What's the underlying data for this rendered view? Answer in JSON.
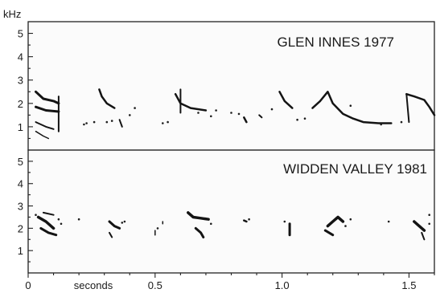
{
  "chart_data": {
    "type": "spectrogram",
    "y_unit_label": "kHz",
    "x_unit_label": "seconds",
    "xlim": [
      0,
      1.6
    ],
    "ylim": [
      0,
      5.5
    ],
    "x_ticks": [
      {
        "value": 0,
        "label": "0"
      },
      {
        "value": 0.5,
        "label": "0.5"
      },
      {
        "value": 1.0,
        "label": "1.0"
      },
      {
        "value": 1.5,
        "label": "1.5"
      }
    ],
    "y_ticks": [
      {
        "value": 1,
        "label": "1"
      },
      {
        "value": 2,
        "label": "2"
      },
      {
        "value": 3,
        "label": "3"
      },
      {
        "value": 4,
        "label": "4"
      },
      {
        "value": 5,
        "label": "5"
      }
    ],
    "panels": [
      {
        "title": "GLEN INNES 1977",
        "traces": [
          {
            "w": 3,
            "points": [
              [
                0.03,
                2.5
              ],
              [
                0.06,
                2.2
              ],
              [
                0.1,
                2.1
              ],
              [
                0.12,
                2.0
              ]
            ]
          },
          {
            "w": 3,
            "points": [
              [
                0.03,
                1.85
              ],
              [
                0.07,
                1.7
              ],
              [
                0.12,
                1.65
              ]
            ]
          },
          {
            "w": 2,
            "points": [
              [
                0.03,
                1.2
              ],
              [
                0.07,
                1.0
              ],
              [
                0.1,
                0.9
              ]
            ]
          },
          {
            "w": 1.5,
            "points": [
              [
                0.03,
                0.8
              ],
              [
                0.06,
                0.6
              ],
              [
                0.08,
                0.5
              ]
            ]
          },
          {
            "w": 2,
            "points": [
              [
                0.12,
                2.3
              ],
              [
                0.12,
                0.8
              ]
            ]
          },
          {
            "w": 2.5,
            "points": [
              [
                0.28,
                2.6
              ],
              [
                0.29,
                2.3
              ],
              [
                0.31,
                2.0
              ],
              [
                0.34,
                1.8
              ]
            ]
          },
          {
            "w": 2,
            "points": [
              [
                0.36,
                1.3
              ],
              [
                0.37,
                1.0
              ]
            ]
          },
          {
            "w": 2.5,
            "points": [
              [
                0.58,
                2.4
              ],
              [
                0.6,
                2.0
              ],
              [
                0.64,
                1.8
              ],
              [
                0.7,
                1.7
              ]
            ]
          },
          {
            "w": 2,
            "points": [
              [
                0.6,
                2.6
              ],
              [
                0.6,
                1.6
              ]
            ]
          },
          {
            "w": 2.5,
            "points": [
              [
                0.85,
                1.4
              ],
              [
                0.86,
                1.2
              ]
            ]
          },
          {
            "w": 2,
            "points": [
              [
                0.91,
                1.5
              ],
              [
                0.92,
                1.4
              ]
            ]
          },
          {
            "w": 2.5,
            "points": [
              [
                0.99,
                2.5
              ],
              [
                1.01,
                2.1
              ],
              [
                1.04,
                1.8
              ]
            ]
          },
          {
            "w": 2.5,
            "points": [
              [
                1.12,
                1.8
              ],
              [
                1.15,
                2.1
              ],
              [
                1.18,
                2.5
              ],
              [
                1.2,
                2.0
              ],
              [
                1.24,
                1.55
              ],
              [
                1.28,
                1.35
              ],
              [
                1.32,
                1.2
              ],
              [
                1.38,
                1.15
              ],
              [
                1.43,
                1.15
              ]
            ]
          },
          {
            "w": 2.5,
            "points": [
              [
                1.49,
                2.4
              ],
              [
                1.52,
                2.3
              ],
              [
                1.56,
                2.15
              ],
              [
                1.58,
                1.85
              ],
              [
                1.6,
                1.5
              ]
            ]
          },
          {
            "w": 2,
            "points": [
              [
                1.49,
                2.4
              ],
              [
                1.5,
                1.2
              ]
            ]
          }
        ],
        "specks": [
          [
            0.22,
            1.1
          ],
          [
            0.23,
            1.15
          ],
          [
            0.31,
            1.2
          ],
          [
            0.33,
            1.25
          ],
          [
            0.26,
            1.2
          ],
          [
            0.53,
            1.15
          ],
          [
            0.55,
            1.2
          ],
          [
            0.67,
            1.6
          ],
          [
            0.72,
            1.45
          ],
          [
            0.74,
            1.7
          ],
          [
            0.8,
            1.6
          ],
          [
            0.83,
            1.55
          ],
          [
            0.96,
            1.75
          ],
          [
            1.06,
            1.3
          ],
          [
            1.09,
            1.35
          ],
          [
            1.27,
            1.9
          ],
          [
            1.47,
            1.2
          ],
          [
            1.39,
            1.1
          ],
          [
            0.4,
            1.5
          ],
          [
            0.42,
            1.8
          ]
        ]
      },
      {
        "title": "WIDDEN VALLEY 1981",
        "traces": [
          {
            "w": 3.5,
            "points": [
              [
                0.04,
                2.5
              ],
              [
                0.07,
                2.3
              ],
              [
                0.1,
                2.0
              ]
            ]
          },
          {
            "w": 3,
            "points": [
              [
                0.05,
                2.0
              ],
              [
                0.08,
                1.8
              ],
              [
                0.11,
                1.7
              ]
            ]
          },
          {
            "w": 2,
            "points": [
              [
                0.06,
                2.7
              ],
              [
                0.1,
                2.6
              ]
            ]
          },
          {
            "w": 3,
            "points": [
              [
                0.32,
                2.3
              ],
              [
                0.34,
                2.1
              ],
              [
                0.36,
                2.0
              ]
            ]
          },
          {
            "w": 2,
            "points": [
              [
                0.32,
                1.8
              ],
              [
                0.33,
                1.6
              ]
            ]
          },
          {
            "w": 1.5,
            "points": [
              [
                0.5,
                1.9
              ],
              [
                0.5,
                1.7
              ]
            ]
          },
          {
            "w": 1.5,
            "points": [
              [
                0.53,
                2.3
              ],
              [
                0.53,
                2.2
              ]
            ]
          },
          {
            "w": 3.5,
            "points": [
              [
                0.63,
                2.7
              ],
              [
                0.65,
                2.5
              ],
              [
                0.68,
                2.45
              ],
              [
                0.71,
                2.4
              ]
            ]
          },
          {
            "w": 3,
            "points": [
              [
                0.66,
                2.0
              ],
              [
                0.68,
                1.8
              ],
              [
                0.69,
                1.6
              ]
            ]
          },
          {
            "w": 2.5,
            "points": [
              [
                0.85,
                2.35
              ],
              [
                0.86,
                2.3
              ]
            ]
          },
          {
            "w": 3,
            "points": [
              [
                1.03,
                2.2
              ],
              [
                1.03,
                1.7
              ]
            ]
          },
          {
            "w": 3.5,
            "points": [
              [
                1.18,
                2.1
              ],
              [
                1.2,
                2.3
              ],
              [
                1.22,
                2.5
              ],
              [
                1.24,
                2.3
              ]
            ]
          },
          {
            "w": 3,
            "points": [
              [
                1.17,
                1.9
              ],
              [
                1.2,
                1.7
              ]
            ]
          },
          {
            "w": 3.5,
            "points": [
              [
                1.52,
                2.3
              ],
              [
                1.54,
                2.1
              ],
              [
                1.56,
                1.9
              ]
            ]
          },
          {
            "w": 2,
            "points": [
              [
                1.55,
                1.8
              ],
              [
                1.56,
                1.5
              ]
            ]
          }
        ],
        "specks": [
          [
            0.03,
            2.6
          ],
          [
            0.12,
            2.4
          ],
          [
            0.13,
            2.2
          ],
          [
            0.38,
            2.3
          ],
          [
            0.37,
            2.25
          ],
          [
            0.2,
            2.4
          ],
          [
            0.51,
            2.0
          ],
          [
            0.72,
            2.2
          ],
          [
            0.87,
            2.4
          ],
          [
            1.01,
            2.3
          ],
          [
            1.25,
            2.1
          ],
          [
            1.27,
            2.4
          ],
          [
            1.42,
            2.3
          ],
          [
            1.58,
            2.6
          ],
          [
            1.58,
            2.2
          ]
        ]
      }
    ]
  }
}
